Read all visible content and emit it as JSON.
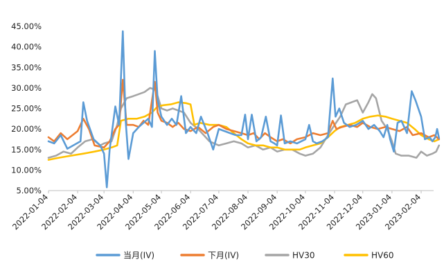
{
  "chart_data": {
    "type": "line",
    "y_axis": {
      "min": 5,
      "max": 45,
      "step": 5,
      "tick_labels": [
        "45.00%",
        "40.00%",
        "35.00%",
        "30.00%",
        "25.00%",
        "20.00%",
        "15.00%",
        "10.00%",
        "5.00%"
      ]
    },
    "x_axis": {
      "tick_labels": [
        "2022-01-04",
        "2022-02-04",
        "2022-03-04",
        "2022-04-04",
        "2022-05-04",
        "2022-06-04",
        "2022-07-04",
        "2022-08-04",
        "2022-09-04",
        "2022-10-04",
        "2022-11-04",
        "2022-12-04",
        "2023-01-04",
        "2023-02-04"
      ]
    },
    "grid": false,
    "legend": {
      "position": "bottom"
    },
    "series": [
      {
        "name": "当月(IV)",
        "color": "#5B9BD5",
        "points": [
          [
            "2022-01-04",
            17.0
          ],
          [
            "2022-01-10",
            16.5
          ],
          [
            "2022-01-17",
            18.5
          ],
          [
            "2022-01-24",
            15.2
          ],
          [
            "2022-02-07",
            17.0
          ],
          [
            "2022-02-10",
            26.5
          ],
          [
            "2022-02-14",
            22.0
          ],
          [
            "2022-02-21",
            17.5
          ],
          [
            "2022-02-28",
            16.0
          ],
          [
            "2022-03-04",
            14.0
          ],
          [
            "2022-03-07",
            5.8
          ],
          [
            "2022-03-10",
            15.0
          ],
          [
            "2022-03-16",
            25.5
          ],
          [
            "2022-03-20",
            21.0
          ],
          [
            "2022-03-24",
            43.8
          ],
          [
            "2022-03-27",
            22.0
          ],
          [
            "2022-03-30",
            12.7
          ],
          [
            "2022-04-04",
            19.0
          ],
          [
            "2022-04-10",
            20.5
          ],
          [
            "2022-04-15",
            21.5
          ],
          [
            "2022-04-20",
            22.5
          ],
          [
            "2022-04-24",
            20.5
          ],
          [
            "2022-04-27",
            39.0
          ],
          [
            "2022-04-30",
            27.0
          ],
          [
            "2022-05-04",
            23.0
          ],
          [
            "2022-05-10",
            21.0
          ],
          [
            "2022-05-15",
            22.5
          ],
          [
            "2022-05-20",
            21.0
          ],
          [
            "2022-05-25",
            28.0
          ],
          [
            "2022-05-30",
            19.0
          ],
          [
            "2022-06-04",
            20.5
          ],
          [
            "2022-06-10",
            19.0
          ],
          [
            "2022-06-15",
            23.0
          ],
          [
            "2022-06-22",
            19.0
          ],
          [
            "2022-06-28",
            15.0
          ],
          [
            "2022-07-04",
            20.0
          ],
          [
            "2022-07-10",
            19.5
          ],
          [
            "2022-07-16",
            19.0
          ],
          [
            "2022-07-22",
            18.5
          ],
          [
            "2022-07-28",
            18.5
          ],
          [
            "2022-08-01",
            23.5
          ],
          [
            "2022-08-04",
            17.5
          ],
          [
            "2022-08-08",
            23.5
          ],
          [
            "2022-08-13",
            17.0
          ],
          [
            "2022-08-18",
            18.0
          ],
          [
            "2022-08-23",
            23.0
          ],
          [
            "2022-08-28",
            17.0
          ],
          [
            "2022-09-01",
            16.5
          ],
          [
            "2022-09-04",
            16.0
          ],
          [
            "2022-09-08",
            23.3
          ],
          [
            "2022-09-12",
            16.5
          ],
          [
            "2022-09-18",
            17.0
          ],
          [
            "2022-09-25",
            16.5
          ],
          [
            "2022-10-04",
            17.5
          ],
          [
            "2022-10-08",
            21.0
          ],
          [
            "2022-10-12",
            17.0
          ],
          [
            "2022-10-16",
            16.5
          ],
          [
            "2022-10-22",
            17.0
          ],
          [
            "2022-10-28",
            18.0
          ],
          [
            "2022-11-02",
            32.3
          ],
          [
            "2022-11-05",
            23.0
          ],
          [
            "2022-11-09",
            25.0
          ],
          [
            "2022-11-14",
            21.5
          ],
          [
            "2022-11-20",
            20.5
          ],
          [
            "2022-11-27",
            21.0
          ],
          [
            "2022-12-04",
            22.0
          ],
          [
            "2022-12-10",
            20.0
          ],
          [
            "2022-12-16",
            21.0
          ],
          [
            "2022-12-22",
            19.5
          ],
          [
            "2022-12-26",
            18.0
          ],
          [
            "2022-12-30",
            21.0
          ],
          [
            "2023-01-02",
            17.5
          ],
          [
            "2023-01-06",
            14.5
          ],
          [
            "2023-01-10",
            21.5
          ],
          [
            "2023-01-14",
            22.0
          ],
          [
            "2023-01-20",
            19.0
          ],
          [
            "2023-01-25",
            29.2
          ],
          [
            "2023-01-29",
            27.0
          ],
          [
            "2023-02-04",
            23.0
          ],
          [
            "2023-02-08",
            17.5
          ],
          [
            "2023-02-13",
            18.0
          ],
          [
            "2023-02-16",
            17.0
          ],
          [
            "2023-02-19",
            18.0
          ],
          [
            "2023-02-21",
            20.0
          ],
          [
            "2023-02-23",
            17.8
          ]
        ]
      },
      {
        "name": "下月(IV)",
        "color": "#ED7D31",
        "points": [
          [
            "2022-01-04",
            18.0
          ],
          [
            "2022-01-10",
            17.0
          ],
          [
            "2022-01-17",
            19.0
          ],
          [
            "2022-01-24",
            17.5
          ],
          [
            "2022-02-04",
            19.5
          ],
          [
            "2022-02-10",
            22.5
          ],
          [
            "2022-02-16",
            20.0
          ],
          [
            "2022-02-22",
            16.0
          ],
          [
            "2022-03-04",
            15.5
          ],
          [
            "2022-03-10",
            17.0
          ],
          [
            "2022-03-16",
            20.0
          ],
          [
            "2022-03-20",
            21.0
          ],
          [
            "2022-03-24",
            32.0
          ],
          [
            "2022-03-28",
            21.0
          ],
          [
            "2022-04-04",
            21.0
          ],
          [
            "2022-04-10",
            20.5
          ],
          [
            "2022-04-15",
            22.0
          ],
          [
            "2022-04-20",
            21.0
          ],
          [
            "2022-04-27",
            31.5
          ],
          [
            "2022-04-30",
            24.0
          ],
          [
            "2022-05-04",
            22.0
          ],
          [
            "2022-05-10",
            21.5
          ],
          [
            "2022-05-16",
            20.5
          ],
          [
            "2022-05-22",
            21.5
          ],
          [
            "2022-05-28",
            20.0
          ],
          [
            "2022-06-04",
            19.5
          ],
          [
            "2022-06-12",
            20.5
          ],
          [
            "2022-06-20",
            19.0
          ],
          [
            "2022-06-28",
            20.5
          ],
          [
            "2022-07-04",
            21.0
          ],
          [
            "2022-07-12",
            20.0
          ],
          [
            "2022-07-20",
            19.5
          ],
          [
            "2022-07-28",
            19.0
          ],
          [
            "2022-08-04",
            18.5
          ],
          [
            "2022-08-10",
            19.0
          ],
          [
            "2022-08-16",
            17.5
          ],
          [
            "2022-08-22",
            19.0
          ],
          [
            "2022-08-28",
            18.0
          ],
          [
            "2022-09-04",
            17.0
          ],
          [
            "2022-09-10",
            17.5
          ],
          [
            "2022-09-18",
            16.5
          ],
          [
            "2022-09-25",
            17.5
          ],
          [
            "2022-10-04",
            18.0
          ],
          [
            "2022-10-12",
            19.0
          ],
          [
            "2022-10-20",
            18.5
          ],
          [
            "2022-10-28",
            19.0
          ],
          [
            "2022-11-02",
            22.0
          ],
          [
            "2022-11-06",
            20.0
          ],
          [
            "2022-11-12",
            20.5
          ],
          [
            "2022-11-20",
            21.0
          ],
          [
            "2022-11-28",
            20.5
          ],
          [
            "2022-12-04",
            21.5
          ],
          [
            "2022-12-12",
            20.5
          ],
          [
            "2022-12-20",
            20.0
          ],
          [
            "2022-12-28",
            20.5
          ],
          [
            "2023-01-04",
            20.0
          ],
          [
            "2023-01-12",
            19.5
          ],
          [
            "2023-01-20",
            20.5
          ],
          [
            "2023-01-26",
            18.5
          ],
          [
            "2023-02-04",
            19.0
          ],
          [
            "2023-02-12",
            18.0
          ],
          [
            "2023-02-18",
            18.5
          ],
          [
            "2023-02-23",
            17.5
          ]
        ]
      },
      {
        "name": "HV30",
        "color": "#A5A5A5",
        "points": [
          [
            "2022-01-04",
            13.0
          ],
          [
            "2022-01-12",
            13.5
          ],
          [
            "2022-01-20",
            14.5
          ],
          [
            "2022-01-28",
            14.0
          ],
          [
            "2022-02-04",
            15.5
          ],
          [
            "2022-02-12",
            17.0
          ],
          [
            "2022-02-20",
            17.5
          ],
          [
            "2022-02-28",
            16.0
          ],
          [
            "2022-03-04",
            16.5
          ],
          [
            "2022-03-12",
            17.0
          ],
          [
            "2022-03-18",
            21.0
          ],
          [
            "2022-03-22",
            25.0
          ],
          [
            "2022-03-28",
            27.5
          ],
          [
            "2022-04-04",
            28.0
          ],
          [
            "2022-04-10",
            28.5
          ],
          [
            "2022-04-16",
            29.0
          ],
          [
            "2022-04-22",
            30.0
          ],
          [
            "2022-04-28",
            29.5
          ],
          [
            "2022-05-04",
            25.0
          ],
          [
            "2022-05-10",
            24.5
          ],
          [
            "2022-05-16",
            25.0
          ],
          [
            "2022-05-22",
            24.5
          ],
          [
            "2022-05-28",
            24.0
          ],
          [
            "2022-06-04",
            21.5
          ],
          [
            "2022-06-12",
            20.0
          ],
          [
            "2022-06-18",
            18.5
          ],
          [
            "2022-06-24",
            17.0
          ],
          [
            "2022-07-04",
            16.0
          ],
          [
            "2022-07-12",
            16.5
          ],
          [
            "2022-07-20",
            17.0
          ],
          [
            "2022-07-28",
            16.5
          ],
          [
            "2022-08-04",
            15.5
          ],
          [
            "2022-08-12",
            16.0
          ],
          [
            "2022-08-20",
            15.0
          ],
          [
            "2022-08-28",
            15.5
          ],
          [
            "2022-09-04",
            14.5
          ],
          [
            "2022-09-12",
            15.0
          ],
          [
            "2022-09-20",
            15.0
          ],
          [
            "2022-09-28",
            14.0
          ],
          [
            "2022-10-04",
            13.5
          ],
          [
            "2022-10-12",
            14.0
          ],
          [
            "2022-10-20",
            15.5
          ],
          [
            "2022-10-28",
            18.5
          ],
          [
            "2022-11-04",
            21.0
          ],
          [
            "2022-11-10",
            23.0
          ],
          [
            "2022-11-16",
            26.0
          ],
          [
            "2022-11-22",
            26.5
          ],
          [
            "2022-11-28",
            27.0
          ],
          [
            "2022-12-04",
            24.0
          ],
          [
            "2022-12-10",
            26.5
          ],
          [
            "2022-12-14",
            28.5
          ],
          [
            "2022-12-18",
            27.5
          ],
          [
            "2022-12-24",
            22.0
          ],
          [
            "2022-12-30",
            20.0
          ],
          [
            "2023-01-04",
            17.0
          ],
          [
            "2023-01-08",
            14.0
          ],
          [
            "2023-01-14",
            13.5
          ],
          [
            "2023-01-22",
            13.5
          ],
          [
            "2023-01-30",
            13.0
          ],
          [
            "2023-02-04",
            14.5
          ],
          [
            "2023-02-10",
            13.5
          ],
          [
            "2023-02-16",
            14.0
          ],
          [
            "2023-02-20",
            14.5
          ],
          [
            "2023-02-23",
            16.0
          ]
        ]
      },
      {
        "name": "HV60",
        "color": "#FFC000",
        "points": [
          [
            "2022-01-04",
            12.5
          ],
          [
            "2022-01-15",
            13.0
          ],
          [
            "2022-01-28",
            13.5
          ],
          [
            "2022-02-10",
            14.0
          ],
          [
            "2022-02-22",
            14.5
          ],
          [
            "2022-03-04",
            15.0
          ],
          [
            "2022-03-12",
            15.5
          ],
          [
            "2022-03-18",
            16.0
          ],
          [
            "2022-03-22",
            22.0
          ],
          [
            "2022-03-30",
            22.5
          ],
          [
            "2022-04-08",
            22.5
          ],
          [
            "2022-04-16",
            23.0
          ],
          [
            "2022-04-24",
            24.0
          ],
          [
            "2022-04-30",
            25.5
          ],
          [
            "2022-05-06",
            25.8
          ],
          [
            "2022-05-14",
            26.0
          ],
          [
            "2022-05-22",
            26.5
          ],
          [
            "2022-05-30",
            26.3
          ],
          [
            "2022-06-04",
            26.0
          ],
          [
            "2022-06-08",
            21.0
          ],
          [
            "2022-06-14",
            21.5
          ],
          [
            "2022-06-24",
            21.0
          ],
          [
            "2022-07-04",
            21.0
          ],
          [
            "2022-07-12",
            20.5
          ],
          [
            "2022-07-20",
            19.0
          ],
          [
            "2022-07-28",
            17.5
          ],
          [
            "2022-08-04",
            16.5
          ],
          [
            "2022-08-12",
            16.0
          ],
          [
            "2022-08-20",
            16.0
          ],
          [
            "2022-08-28",
            15.5
          ],
          [
            "2022-09-04",
            15.5
          ],
          [
            "2022-09-12",
            15.0
          ],
          [
            "2022-09-20",
            15.0
          ],
          [
            "2022-09-28",
            15.0
          ],
          [
            "2022-10-04",
            15.5
          ],
          [
            "2022-10-12",
            16.0
          ],
          [
            "2022-10-20",
            16.5
          ],
          [
            "2022-10-28",
            18.0
          ],
          [
            "2022-11-04",
            19.5
          ],
          [
            "2022-11-10",
            20.5
          ],
          [
            "2022-11-18",
            21.0
          ],
          [
            "2022-11-26",
            21.5
          ],
          [
            "2022-12-04",
            22.5
          ],
          [
            "2022-12-12",
            23.0
          ],
          [
            "2022-12-20",
            23.3
          ],
          [
            "2022-12-28",
            23.0
          ],
          [
            "2023-01-04",
            22.5
          ],
          [
            "2023-01-12",
            22.0
          ],
          [
            "2023-01-20",
            21.5
          ],
          [
            "2023-01-28",
            20.0
          ],
          [
            "2023-02-04",
            18.5
          ],
          [
            "2023-02-12",
            17.5
          ],
          [
            "2023-02-18",
            17.0
          ],
          [
            "2023-02-23",
            17.5
          ]
        ]
      }
    ]
  }
}
